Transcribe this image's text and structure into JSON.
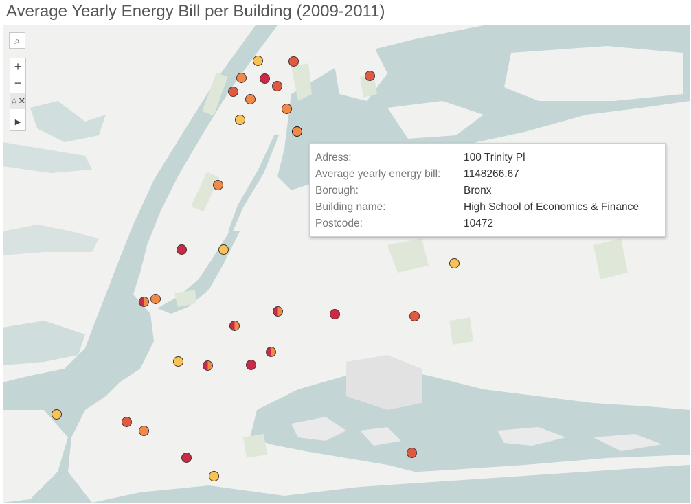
{
  "title": "Average Yearly Energy Bill per Building (2009-2011)",
  "map_controls": {
    "search_icon": "search-icon",
    "zoom_in_label": "+",
    "zoom_out_label": "−",
    "pan_icon": "pan-select-icon",
    "expand_icon": "play-icon"
  },
  "colors": {
    "water": "#c3d5d5",
    "land": "#f1f1f0",
    "park": "#dfe8d8",
    "low": "#f6c453",
    "mid": "#f08a48",
    "high": "#e05a42",
    "highest": "#c92a45"
  },
  "tooltip": {
    "rows": [
      {
        "label": "Adress:",
        "value": "100 Trinity Pl"
      },
      {
        "label": "Average yearly energy bill:",
        "value": "1148266.67"
      },
      {
        "label": "Borough:",
        "value": "Bronx"
      },
      {
        "label": "Building name:",
        "value": "High School of Economics & Finance"
      },
      {
        "label": "Postcode:",
        "value": "10472"
      }
    ]
  },
  "markers": [
    {
      "level": "low"
    },
    {
      "level": "high"
    },
    {
      "level": "mid"
    },
    {
      "level": "highest"
    },
    {
      "level": "high"
    },
    {
      "level": "high"
    },
    {
      "level": "mid"
    },
    {
      "level": "high"
    },
    {
      "level": "low"
    },
    {
      "level": "mid"
    },
    {
      "level": "selected"
    },
    {
      "level": "mid"
    },
    {
      "level": "highest"
    },
    {
      "level": "low"
    },
    {
      "level": "low"
    },
    {
      "level": "split"
    },
    {
      "level": "mid"
    },
    {
      "level": "split"
    },
    {
      "level": "split"
    },
    {
      "level": "highest"
    },
    {
      "level": "high"
    },
    {
      "level": "low"
    },
    {
      "level": "split"
    },
    {
      "level": "highest"
    },
    {
      "level": "split"
    },
    {
      "level": "low"
    },
    {
      "level": "high"
    },
    {
      "level": "mid"
    },
    {
      "level": "highest"
    },
    {
      "level": "high"
    },
    {
      "level": "low"
    }
  ]
}
